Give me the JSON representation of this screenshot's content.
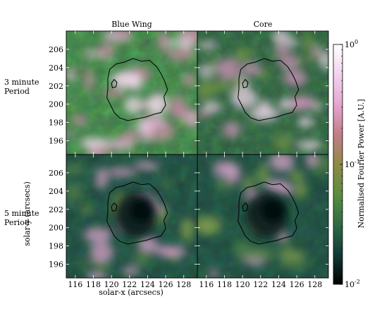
{
  "chart_data": {
    "type": "heatmap",
    "columns": [
      "Blue Wing",
      "Core"
    ],
    "rows": [
      {
        "line1": "3 minute",
        "line2": "Period"
      },
      {
        "line1": "5 minute",
        "line2": "Period"
      }
    ],
    "xlabel": "solar-x (arcsecs)",
    "ylabel": "solar-y (arcsecs)",
    "x_ticks": [
      116,
      118,
      120,
      122,
      124,
      126,
      128
    ],
    "y_ticks": [
      196,
      198,
      200,
      202,
      204,
      206
    ],
    "xlim": [
      115,
      129.5
    ],
    "ylim": [
      194.5,
      208
    ],
    "colorbar": {
      "label": "Normalised Fourier Power [A.U.]",
      "scale": "log",
      "range": [
        0.01,
        1
      ],
      "ticks": [
        {
          "base": "10",
          "exp": "0",
          "value": 1
        },
        {
          "base": "10",
          "exp": "-1",
          "value": 0.1
        },
        {
          "base": "10",
          "exp": "-2",
          "value": 0.01
        }
      ],
      "colors": [
        "#000000",
        "#123a37",
        "#2e6b43",
        "#5b8d3f",
        "#8f8a44",
        "#c47c8a",
        "#e6a6d0",
        "#f1d3ee",
        "#ffffff"
      ]
    },
    "panels": [
      {
        "row": 0,
        "col": 0,
        "name": "3 minute Period, Blue Wing",
        "dominant": "pink"
      },
      {
        "row": 0,
        "col": 1,
        "name": "3 minute Period, Core",
        "dominant": "green-pink"
      },
      {
        "row": 1,
        "col": 0,
        "name": "5 minute Period, Blue Wing",
        "dominant": "green"
      },
      {
        "row": 1,
        "col": 1,
        "name": "5 minute Period, Core",
        "dominant": "green"
      }
    ]
  }
}
